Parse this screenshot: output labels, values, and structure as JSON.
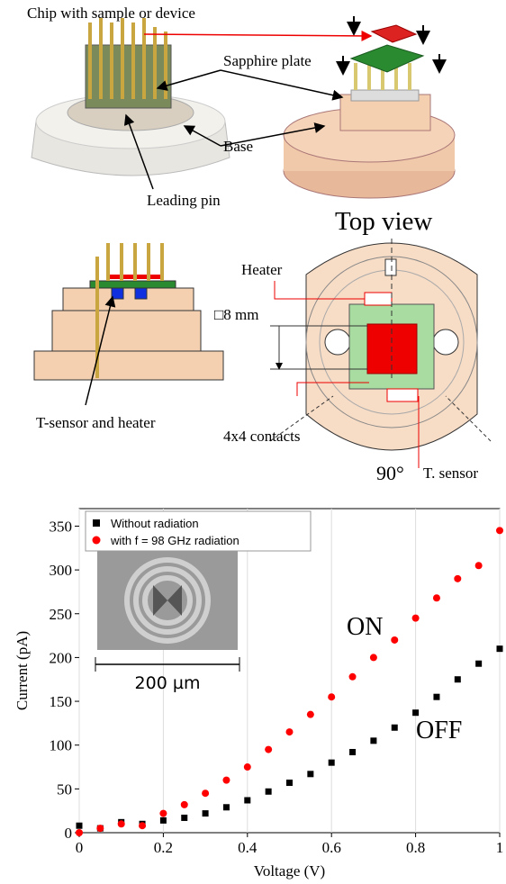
{
  "diagram": {
    "chip_label": "Chip with sample or device",
    "sapphire_label": "Sapphire plate",
    "base_label": "Base",
    "pin_label": "Leading pin",
    "top_view_title": "Top view",
    "heater_label": "Heater",
    "size_label": "□8 mm",
    "sensor_heater_label": "T-sensor and heater",
    "contacts_label": "4x4 contacts",
    "angle_label": "90°",
    "t_sensor_label": "T. sensor"
  },
  "chart_data": {
    "type": "scatter",
    "x_label": "Voltage (V)",
    "y_label": "Current (pA)",
    "x": [
      0,
      0.05,
      0.1,
      0.15,
      0.2,
      0.25,
      0.3,
      0.35,
      0.4,
      0.45,
      0.5,
      0.55,
      0.6,
      0.65,
      0.7,
      0.75,
      0.8,
      0.85,
      0.9,
      0.95,
      1
    ],
    "series": [
      {
        "name": "Without radiation",
        "color": "#000000",
        "marker": "square",
        "values": [
          8,
          5,
          12,
          10,
          14,
          17,
          22,
          29,
          37,
          47,
          57,
          67,
          80,
          92,
          105,
          120,
          137,
          155,
          175,
          193,
          210
        ]
      },
      {
        "name": "with f = 98 GHz radiation",
        "color": "#ff0000",
        "marker": "circle",
        "values": [
          0,
          5,
          10,
          8,
          22,
          32,
          45,
          60,
          75,
          95,
          115,
          135,
          155,
          178,
          200,
          220,
          245,
          268,
          290,
          305,
          345
        ]
      }
    ],
    "annotations": [
      "ON",
      "OFF",
      "200 µm"
    ],
    "xlim": [
      0,
      1
    ],
    "ylim": [
      0,
      370
    ],
    "xticks": [
      0,
      0.2,
      0.4,
      0.6,
      0.8,
      1
    ],
    "yticks": [
      0,
      50,
      100,
      150,
      200,
      250,
      300,
      350
    ],
    "grid": true,
    "legend": "top-left"
  }
}
